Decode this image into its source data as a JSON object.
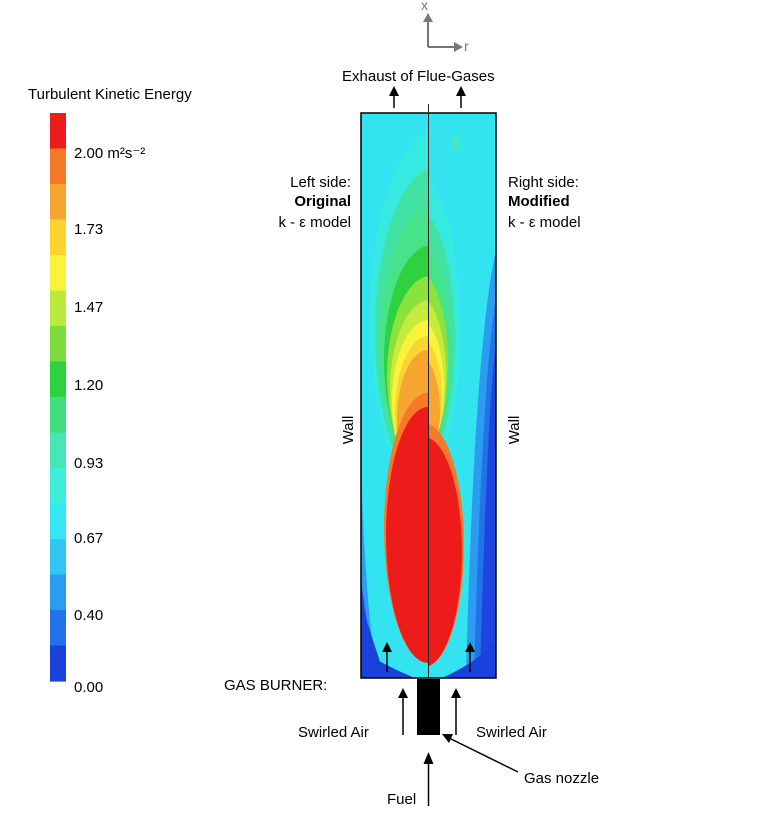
{
  "axes": {
    "x_label": "x",
    "r_label": "r"
  },
  "colorbar": {
    "title": "Turbulent Kinetic Energy",
    "labels": [
      "2.00 m²s⁻²",
      "1.73",
      "1.47",
      "1.20",
      "0.93",
      "0.67",
      "0.40",
      "0.00"
    ],
    "band_colors": [
      "#ee1b1b",
      "#f47a2a",
      "#f6a531",
      "#fbd432",
      "#f9f33c",
      "#b9ea3c",
      "#7edc3d",
      "#2fd140",
      "#43dc7e",
      "#46e6b6",
      "#3feed7",
      "#34e7f2",
      "#2fc7f2",
      "#2b9df0",
      "#2273ea",
      "#1b41dc"
    ]
  },
  "labels": {
    "exhaust": "Exhaust of Flue-Gases",
    "left_side_line1": "Left side:",
    "left_side_line2": "Original",
    "left_side_line3": "k - ε model",
    "right_side_line1": "Right side:",
    "right_side_line2": "Modified",
    "right_side_line3": "k - ε model",
    "wall_left": "Wall",
    "wall_right": "Wall",
    "gas_burner": "GAS BURNER:",
    "swirled_air_left": "Swirled Air",
    "swirled_air_right": "Swirled Air",
    "gas_nozzle": "Gas nozzle",
    "fuel": "Fuel"
  }
}
